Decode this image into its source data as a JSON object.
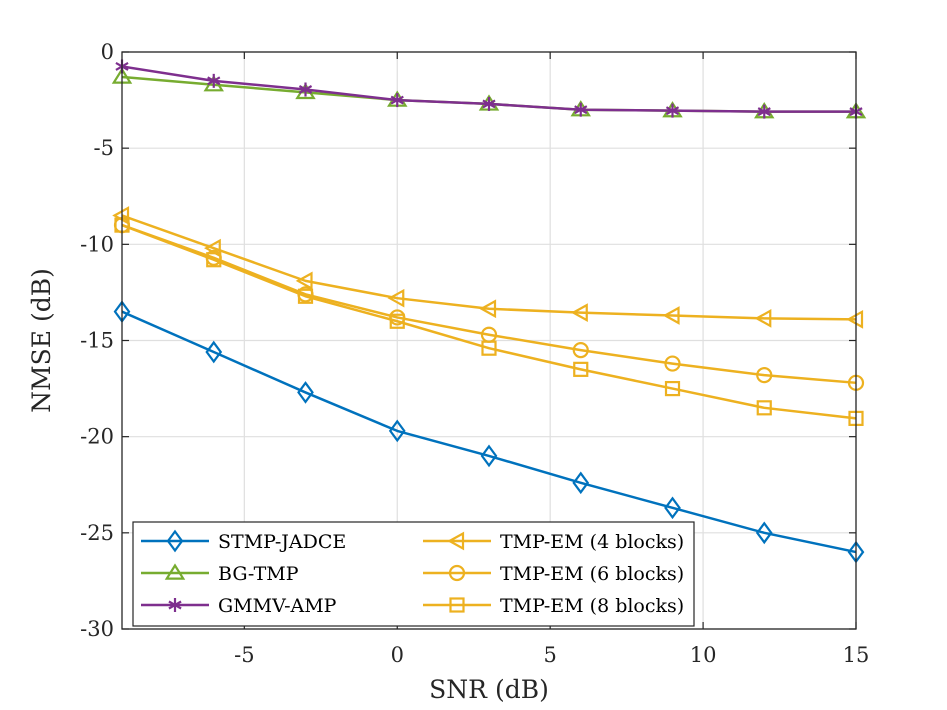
{
  "chart_data": {
    "type": "line",
    "title": "",
    "xlabel": "SNR (dB)",
    "ylabel": "NMSE (dB)",
    "xlim": [
      -9,
      15
    ],
    "ylim": [
      -30,
      0
    ],
    "xticks": [
      -5,
      0,
      5,
      10,
      15
    ],
    "yticks": [
      0,
      -5,
      -10,
      -15,
      -20,
      -25,
      -30
    ],
    "xtick_labels": [
      "-5",
      "0",
      "5",
      "10",
      "15"
    ],
    "ytick_labels": [
      "0",
      "-5",
      "-10",
      "-15",
      "-20",
      "-25",
      "-30"
    ],
    "grid": true,
    "legend_position": "bottom-left",
    "x": [
      -9,
      -6,
      -3,
      0,
      3,
      6,
      9,
      12,
      15
    ],
    "series": [
      {
        "name": "STMP-JADCE",
        "color": "#0072bd",
        "marker": "diamond",
        "values": [
          -13.5,
          -15.6,
          -17.7,
          -19.7,
          -21.0,
          -22.4,
          -23.7,
          -25.0,
          -26.0
        ]
      },
      {
        "name": "BG-TMP",
        "color": "#77ac30",
        "marker": "triangle-up",
        "values": [
          -1.3,
          -1.7,
          -2.1,
          -2.5,
          -2.7,
          -3.0,
          -3.05,
          -3.1,
          -3.1
        ]
      },
      {
        "name": "GMMV-AMP",
        "color": "#7e2f8e",
        "marker": "asterisk",
        "values": [
          -0.75,
          -1.5,
          -1.95,
          -2.5,
          -2.7,
          -3.0,
          -3.05,
          -3.1,
          -3.1
        ]
      },
      {
        "name": "TMP-EM (4 blocks)",
        "color": "#edb120",
        "marker": "triangle-left",
        "values": [
          -8.5,
          -10.2,
          -11.9,
          -12.8,
          -13.35,
          -13.55,
          -13.7,
          -13.85,
          -13.9
        ]
      },
      {
        "name": "TMP-EM (6 blocks)",
        "color": "#edb120",
        "marker": "circle",
        "values": [
          -9.0,
          -10.7,
          -12.6,
          -13.8,
          -14.7,
          -15.5,
          -16.2,
          -16.8,
          -17.2
        ]
      },
      {
        "name": "TMP-EM (8 blocks)",
        "color": "#edb120",
        "marker": "square",
        "values": [
          -9.0,
          -10.8,
          -12.7,
          -14.0,
          -15.4,
          -16.5,
          -17.5,
          -18.5,
          -19.05
        ]
      }
    ]
  }
}
